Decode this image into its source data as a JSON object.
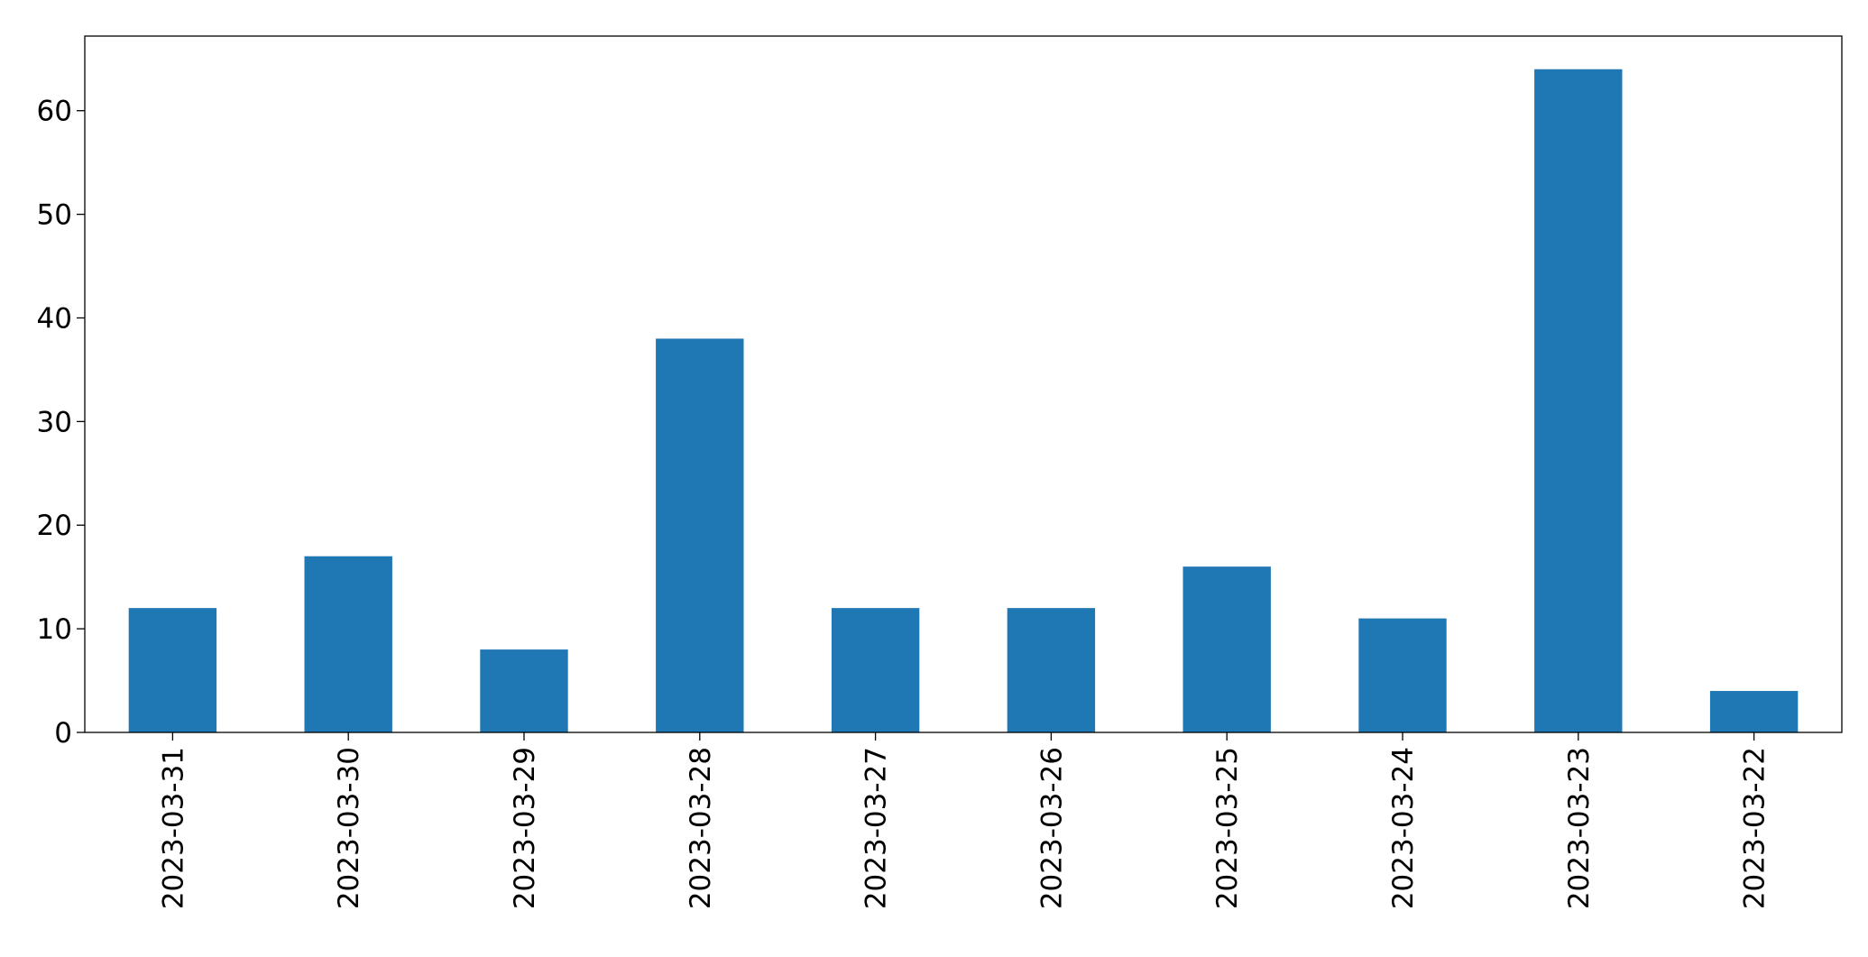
{
  "chart_data": {
    "type": "bar",
    "categories": [
      "2023-03-31",
      "2023-03-30",
      "2023-03-29",
      "2023-03-28",
      "2023-03-27",
      "2023-03-26",
      "2023-03-25",
      "2023-03-24",
      "2023-03-23",
      "2023-03-22"
    ],
    "values": [
      12,
      17,
      8,
      38,
      12,
      12,
      16,
      11,
      64,
      4
    ],
    "color": "#1f77b4",
    "ylim": [
      0,
      67.2
    ],
    "yticks": [
      0,
      10,
      20,
      30,
      40,
      50,
      60
    ],
    "grid": false
  }
}
